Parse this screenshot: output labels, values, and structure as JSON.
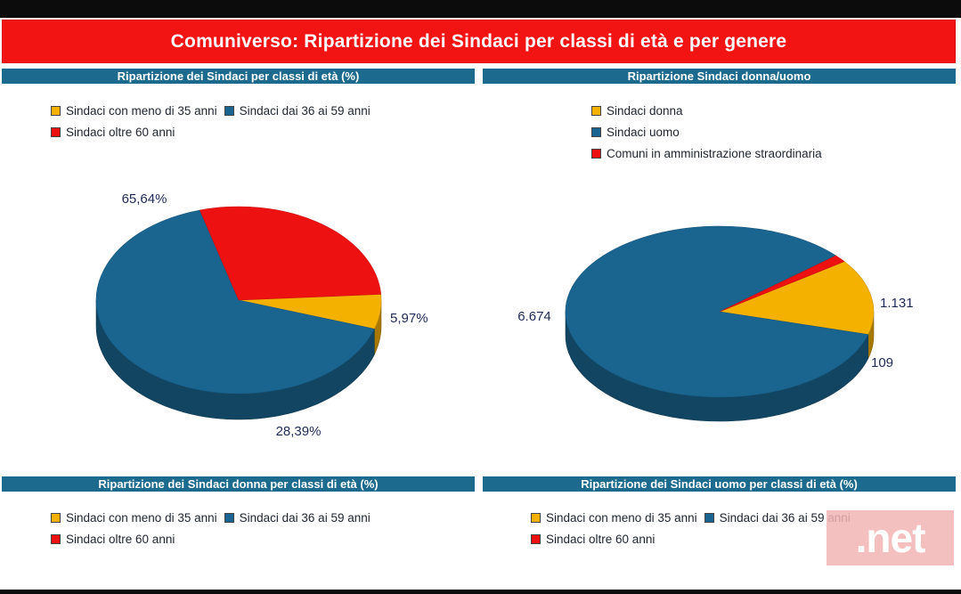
{
  "title": "Comuniverso: Ripartizione dei Sindaci per classi di età e per genere",
  "colors": {
    "orange": "#f5b100",
    "blue": "#1a6590",
    "red": "#ee1111"
  },
  "panels": {
    "age": {
      "header": "Ripartizione dei Sindaci per classi di età (%)",
      "legend": [
        "Sindaci con meno di 35 anni",
        "Sindaci dai 36 ai 59 anni",
        "Sindaci oltre 60 anni"
      ]
    },
    "gender": {
      "header": "Ripartizione Sindaci donna/uomo",
      "legend": [
        "Sindaci donna",
        "Sindaci uomo",
        "Comuni in amministrazione straordinaria"
      ]
    },
    "female_age": {
      "header": "Ripartizione dei Sindaci donna per classi di età (%)",
      "legend": [
        "Sindaci con meno di 35 anni",
        "Sindaci dai 36 ai 59 anni",
        "Sindaci oltre 60 anni"
      ]
    },
    "male_age": {
      "header": "Ripartizione dei Sindaci uomo per classi di età (%)",
      "legend": [
        "Sindaci con meno di 35 anni",
        "Sindaci dai 36 ai 59 anni",
        "Sindaci oltre 60 anni"
      ]
    }
  },
  "watermark": ".net",
  "chart_data": [
    {
      "type": "pie",
      "title": "Ripartizione dei Sindaci per classi di età (%)",
      "categories": [
        "Sindaci con meno di 35 anni",
        "Sindaci dai 36 ai 59 anni",
        "Sindaci oltre 60 anni"
      ],
      "values": [
        5.97,
        65.64,
        28.39
      ],
      "labels": [
        "5,97%",
        "65,64%",
        "28,39%"
      ],
      "colors": [
        "#f5b100",
        "#1a6590",
        "#ee1111"
      ],
      "legend": "top-left"
    },
    {
      "type": "pie",
      "title": "Ripartizione Sindaci donna/uomo",
      "categories": [
        "Sindaci donna",
        "Sindaci uomo",
        "Comuni in amministrazione straordinaria"
      ],
      "values": [
        1131,
        6674,
        109
      ],
      "labels": [
        "1.131",
        "6.674",
        "109"
      ],
      "colors": [
        "#f5b100",
        "#1a6590",
        "#ee1111"
      ],
      "legend": "top-left"
    }
  ]
}
